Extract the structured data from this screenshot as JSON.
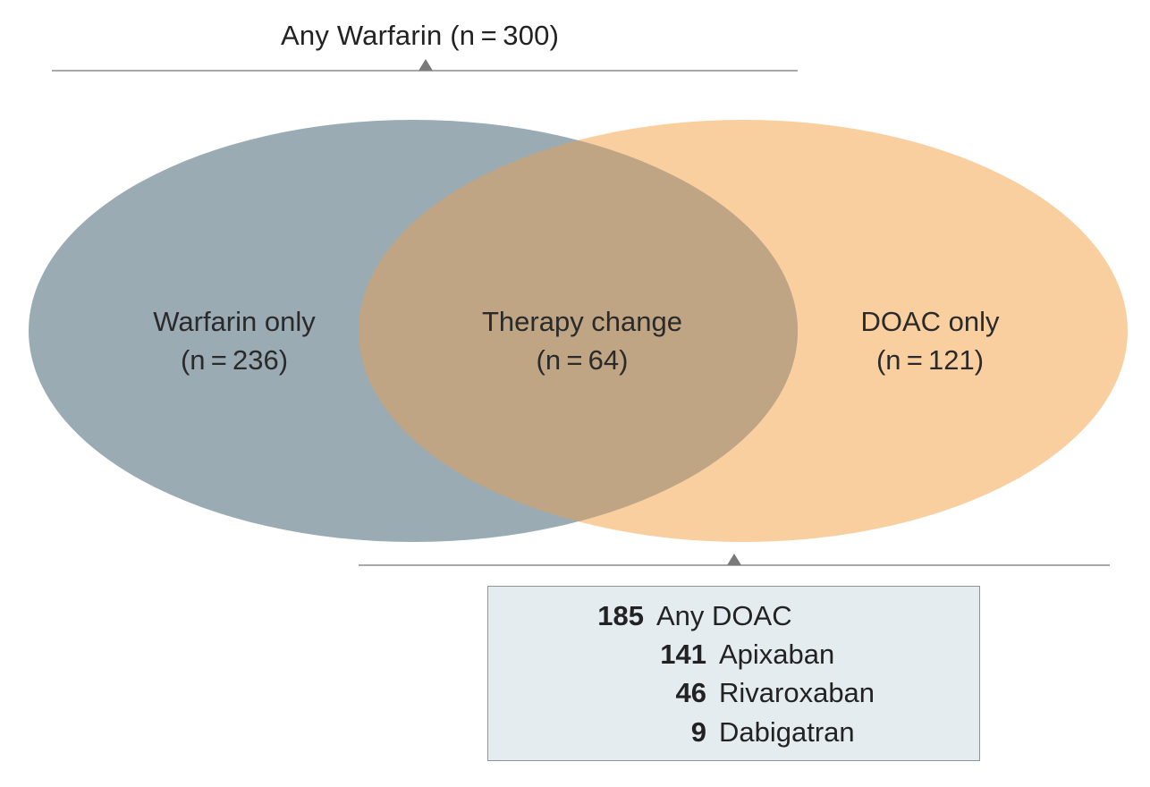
{
  "top_label": "Any Warfarin (n = 300)",
  "regions": {
    "warfarin_only": {
      "label": "Warfarin only",
      "count": "(n = 236)"
    },
    "therapy_change": {
      "label": "Therapy change",
      "count": "(n = 64)"
    },
    "doac_only": {
      "label": "DOAC only",
      "count": "(n = 121)"
    }
  },
  "doac_box": {
    "rows": [
      {
        "value": "185",
        "label": "Any DOAC"
      },
      {
        "value": "141",
        "label": "Apixaban"
      },
      {
        "value": "46",
        "label": "Rivaroxaban"
      },
      {
        "value": "9",
        "label": "Dabigatran"
      }
    ]
  },
  "colors": {
    "warfarin_set": "#9aabb3",
    "doac_set": "#facfa0",
    "overlap": "#bfa584",
    "bracket_line": "#8c8c8c",
    "box_fill": "#e5ecf0"
  }
}
